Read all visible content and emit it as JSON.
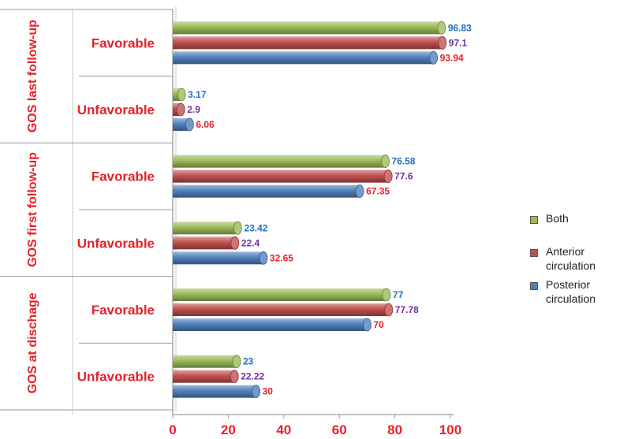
{
  "chart_data": {
    "type": "bar",
    "orientation": "horizontal",
    "groups": [
      "GOS last follow-up",
      "GOS first follow-up",
      "GOS at dischage"
    ],
    "categories": [
      "Favorable",
      "Unfavorable",
      "Favorable",
      "Unfavorable",
      "Favorable",
      "Unfavorable"
    ],
    "series": [
      {
        "name": "Both",
        "color": "#9bbb59",
        "label_color": "#1f6fc5",
        "values": [
          96.83,
          3.17,
          76.58,
          23.42,
          77,
          23
        ],
        "value_labels": [
          "96.83",
          "3.17",
          "76.58",
          "23.42",
          "77",
          "23"
        ]
      },
      {
        "name": "Anterior circulation",
        "color": "#c0504d",
        "label_color": "#7030a0",
        "values": [
          97.1,
          2.9,
          77.6,
          22.4,
          77.78,
          22.22
        ],
        "value_labels": [
          "97.1",
          "2.9",
          "77.6",
          "22.4",
          "77.78",
          "22.22"
        ]
      },
      {
        "name": "Posterior circulation",
        "color": "#4f81bd",
        "label_color": "#e8202a",
        "values": [
          93.94,
          6.06,
          67.35,
          32.65,
          70,
          30
        ],
        "value_labels": [
          "93.94",
          "6.06",
          "67.35",
          "32.65",
          "70",
          "30"
        ]
      }
    ],
    "xlim": [
      0,
      100
    ],
    "x_ticks": [
      "0",
      "20",
      "40",
      "60",
      "80",
      "100"
    ],
    "grid": false,
    "legend_position": "right"
  },
  "legend": {
    "both": {
      "line1": "Both"
    },
    "anterior": {
      "line1": "Anterior",
      "line2": "circulation"
    },
    "posterior": {
      "line1": "Posterior",
      "line2": "circulation"
    }
  },
  "colors": {
    "green": "#9bbb59",
    "red": "#c0504d",
    "blue": "#4f81bd",
    "axis_text": "#e8202a"
  }
}
